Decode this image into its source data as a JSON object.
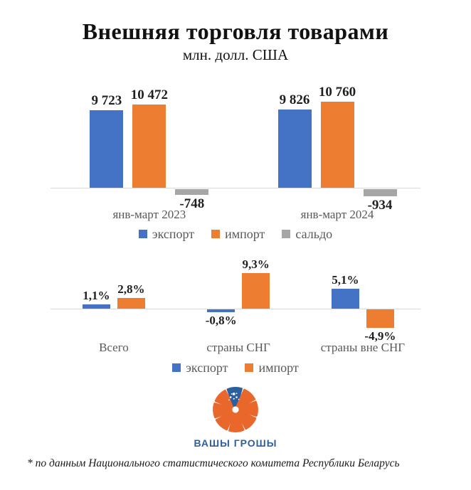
{
  "page": {
    "title": "Внешняя торговля товарами",
    "subtitle": "млн. долл. США",
    "footnote": "* по данным Национального статистического комитета Республики Беларусь"
  },
  "colors": {
    "export": "#4472C4",
    "import": "#ED7D31",
    "balance": "#A6A6A6",
    "axis": "#D9D9D9",
    "value_label": "#1F1F1F",
    "category_label": "#595959",
    "legend_label": "#595959",
    "logo_orange": "#E9672B",
    "logo_blue": "#2C5F9E"
  },
  "chart_data": [
    {
      "type": "bar",
      "title": "Внешняя торговля товарами, млн. долл. США",
      "categories": [
        "янв-март 2023",
        "янв-март 2024"
      ],
      "series": [
        {
          "name": "экспорт",
          "color_key": "export",
          "values": [
            9723,
            9826
          ],
          "labels": [
            "9 723",
            "9 826"
          ]
        },
        {
          "name": "импорт",
          "color_key": "import",
          "values": [
            10472,
            10760
          ],
          "labels": [
            "10 472",
            "10 760"
          ]
        },
        {
          "name": "сальдо",
          "color_key": "balance",
          "values": [
            -748,
            -934
          ],
          "labels": [
            "-748",
            "-934"
          ]
        }
      ],
      "legend": [
        "экспорт",
        "импорт",
        "сальдо"
      ],
      "legend_position": "bottom",
      "grid": false,
      "ylim": [
        -1100,
        11000
      ]
    },
    {
      "type": "bar",
      "title": "",
      "categories": [
        "Всего",
        "страны СНГ",
        "страны вне СНГ"
      ],
      "series": [
        {
          "name": "экспорт",
          "color_key": "export",
          "values": [
            1.1,
            -0.8,
            5.1
          ],
          "labels": [
            "1,1%",
            "-0,8%",
            "5,1%"
          ]
        },
        {
          "name": "импорт",
          "color_key": "import",
          "values": [
            2.8,
            9.3,
            -4.9
          ],
          "labels": [
            "2,8%",
            "9,3%",
            "-4,9%"
          ]
        }
      ],
      "legend": [
        "экспорт",
        "импорт"
      ],
      "legend_position": "bottom",
      "grid": false,
      "ylim": [
        -5.5,
        10
      ]
    }
  ],
  "logo": {
    "text": "ВАШЫ ГРОШЫ",
    "icon": "orange-pinwheel-with-snowflake"
  }
}
